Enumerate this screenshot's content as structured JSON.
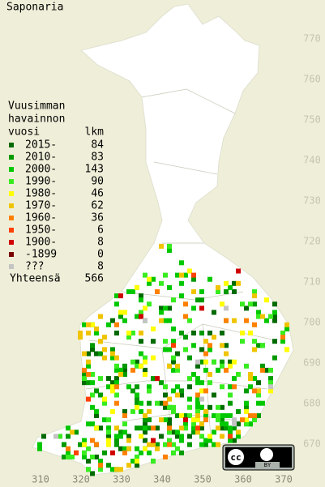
{
  "title": "Saponaria",
  "legend": {
    "heading": [
      "Vuusimman",
      "havainnon",
      "vuosi"
    ],
    "count_header": "lkm",
    "rows": [
      {
        "label": "2015-",
        "count": 84,
        "color": "#006a00"
      },
      {
        "label": "2010-",
        "count": 83,
        "color": "#009a00"
      },
      {
        "label": "2000-",
        "count": 143,
        "color": "#00c800"
      },
      {
        "label": "1990-",
        "count": 90,
        "color": "#38ec20"
      },
      {
        "label": "1980-",
        "count": 46,
        "color": "#ffff00"
      },
      {
        "label": "1970-",
        "count": 62,
        "color": "#f0c400"
      },
      {
        "label": "1960-",
        "count": 36,
        "color": "#ff8000"
      },
      {
        "label": "1950-",
        "count": 6,
        "color": "#ff4000"
      },
      {
        "label": "1900-",
        "count": 8,
        "color": "#d00000"
      },
      {
        "label": "-1899",
        "count": 0,
        "color": "#7a0000"
      },
      {
        "label": "???",
        "count": 8,
        "color": "#c4c4c4"
      }
    ],
    "total": {
      "label": "Yhteensä",
      "count": 566
    }
  },
  "x_axis_labels": [
    310,
    320,
    330,
    340,
    350,
    360,
    370
  ],
  "y_axis_labels": [
    670,
    680,
    690,
    700,
    710,
    720,
    730,
    740,
    750,
    760,
    770
  ],
  "license_badge": "BY"
}
